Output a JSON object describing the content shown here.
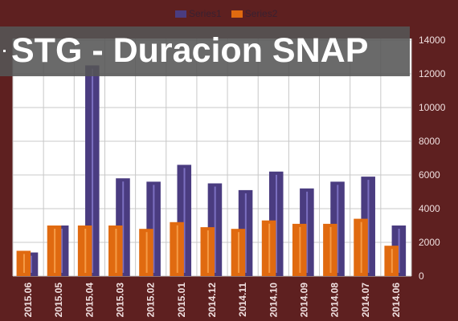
{
  "title": "STG - Duracion SNAP",
  "chart_data": {
    "type": "bar",
    "categories": [
      "2015.06",
      "2015.05",
      "2015.04",
      "2015.03",
      "2015.02",
      "2015.01",
      "2014.12",
      "2014.11",
      "2014.10",
      "2014.09",
      "2014.08",
      "2014.07",
      "2014.06"
    ],
    "series": [
      {
        "name": "Series1",
        "values": [
          1400,
          3000,
          12500,
          5800,
          5600,
          6600,
          5500,
          5100,
          6200,
          5200,
          5600,
          5900,
          3000
        ],
        "color": "#4a3c80"
      },
      {
        "name": "Series2",
        "values": [
          1500,
          3000,
          3000,
          3000,
          2800,
          3200,
          2900,
          2800,
          3300,
          3100,
          3100,
          3400,
          1800
        ],
        "color": "#e06a10"
      }
    ],
    "ylim": [
      0,
      14000
    ],
    "yticks": [
      "0",
      "2000",
      "4000",
      "6000",
      "8000",
      "10000",
      "12000",
      "14000"
    ],
    "grid": true,
    "legend_position": "top",
    "y_axis_side": "right"
  },
  "colors": {
    "background": "#5e2020",
    "plot_background": "#ffffff",
    "gridline": "#c8c8c8"
  }
}
